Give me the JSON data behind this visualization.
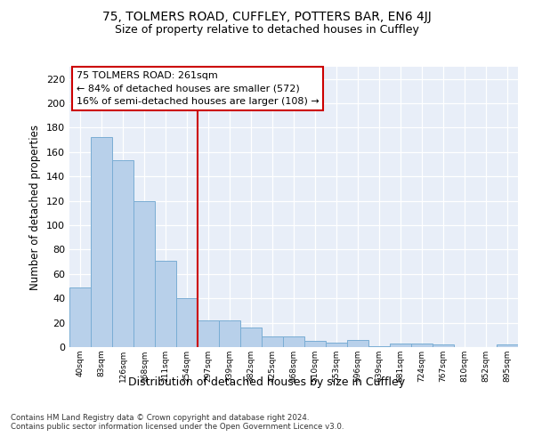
{
  "title1": "75, TOLMERS ROAD, CUFFLEY, POTTERS BAR, EN6 4JJ",
  "title2": "Size of property relative to detached houses in Cuffley",
  "xlabel": "Distribution of detached houses by size in Cuffley",
  "ylabel": "Number of detached properties",
  "categories": [
    "40sqm",
    "83sqm",
    "126sqm",
    "168sqm",
    "211sqm",
    "254sqm",
    "297sqm",
    "339sqm",
    "382sqm",
    "425sqm",
    "468sqm",
    "510sqm",
    "553sqm",
    "596sqm",
    "639sqm",
    "681sqm",
    "724sqm",
    "767sqm",
    "810sqm",
    "852sqm",
    "895sqm"
  ],
  "values": [
    49,
    172,
    153,
    120,
    71,
    40,
    22,
    22,
    16,
    9,
    9,
    5,
    4,
    6,
    1,
    3,
    3,
    2,
    0,
    0,
    2
  ],
  "bar_color": "#b8d0ea",
  "bar_edge_color": "#7aadd4",
  "vline_x": 5.5,
  "vline_color": "#cc0000",
  "annotation_text": "75 TOLMERS ROAD: 261sqm\n← 84% of detached houses are smaller (572)\n16% of semi-detached houses are larger (108) →",
  "annotation_box_color": "#ffffff",
  "annotation_box_edge": "#cc0000",
  "footnote": "Contains HM Land Registry data © Crown copyright and database right 2024.\nContains public sector information licensed under the Open Government Licence v3.0.",
  "bg_color": "#e8eef8",
  "ylim": [
    0,
    230
  ],
  "yticks": [
    0,
    20,
    40,
    60,
    80,
    100,
    120,
    140,
    160,
    180,
    200,
    220
  ],
  "title1_fontsize": 10,
  "title2_fontsize": 9,
  "xlabel_fontsize": 9,
  "ylabel_fontsize": 8.5,
  "tick_fontsize": 8,
  "annot_fontsize": 8
}
